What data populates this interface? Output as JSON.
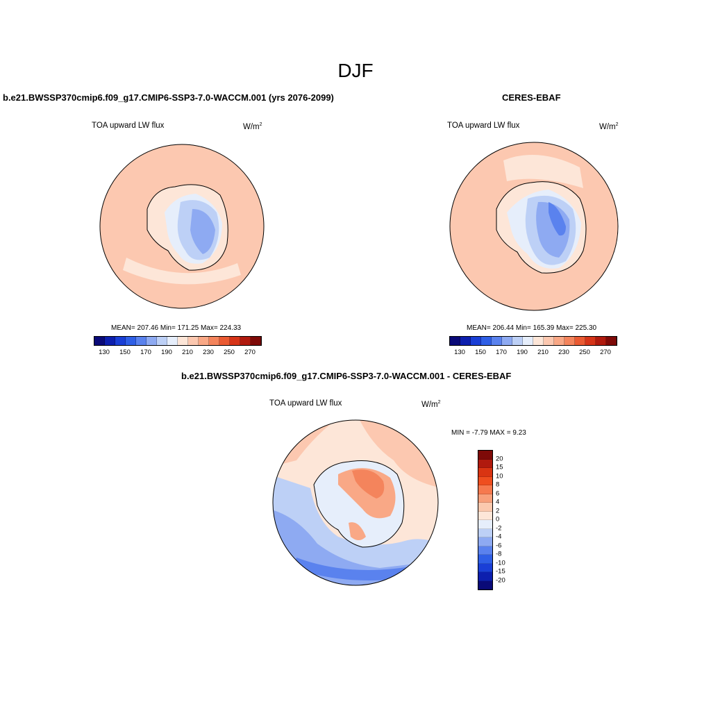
{
  "page": {
    "title": "DJF"
  },
  "panels": {
    "model": {
      "title": "b.e21.BWSSP370cmip6.f09_g17.CMIP6-SSP3-7.0-WACCM.001 (yrs 2076-2099)",
      "variable": "TOA upward LW flux",
      "units": "W/m",
      "units_exp": "2",
      "stats": "MEAN= 207.46  Min= 171.25  Max= 224.33"
    },
    "obs": {
      "title": "CERES-EBAF",
      "variable": "TOA upward LW flux",
      "units": "W/m",
      "units_exp": "2",
      "stats": "MEAN= 206.44  Min= 165.39  Max= 225.30"
    },
    "diff": {
      "title": "b.e21.BWSSP370cmip6.f09_g17.CMIP6-SSP3-7.0-WACCM.001 - CERES-EBAF",
      "variable": "TOA upward LW flux",
      "units": "W/m",
      "units_exp": "2",
      "stats": "MIN =  -7.79 MAX =   9.23"
    }
  },
  "colorbars": {
    "abs": {
      "colors": [
        "#0a0a78",
        "#0d1fae",
        "#1a3fd6",
        "#2f5fe6",
        "#5a82ee",
        "#8eaaf2",
        "#bdd0f6",
        "#e6eefb",
        "#fde6d8",
        "#fcc8b0",
        "#f9a886",
        "#f4845c",
        "#ea5a32",
        "#d63418",
        "#b01a0e",
        "#7e0a08"
      ],
      "tick_labels": [
        "130",
        "150",
        "170",
        "190",
        "210",
        "230",
        "250",
        "270"
      ]
    },
    "diff": {
      "colors": [
        "#7e0a08",
        "#b01a0e",
        "#d93412",
        "#ef4e1f",
        "#f6794e",
        "#f8a07b",
        "#fbc9ae",
        "#fde6d8",
        "#e6eefb",
        "#bdd0f6",
        "#8eaaf2",
        "#5a82ee",
        "#2f5fe6",
        "#1a3fd6",
        "#0d1fae",
        "#0a0a78"
      ],
      "tick_labels": [
        "20",
        "15",
        "10",
        "8",
        "6",
        "4",
        "2",
        "0",
        "-2",
        "-4",
        "-6",
        "-8",
        "-10",
        "-15",
        "-20"
      ]
    }
  }
}
